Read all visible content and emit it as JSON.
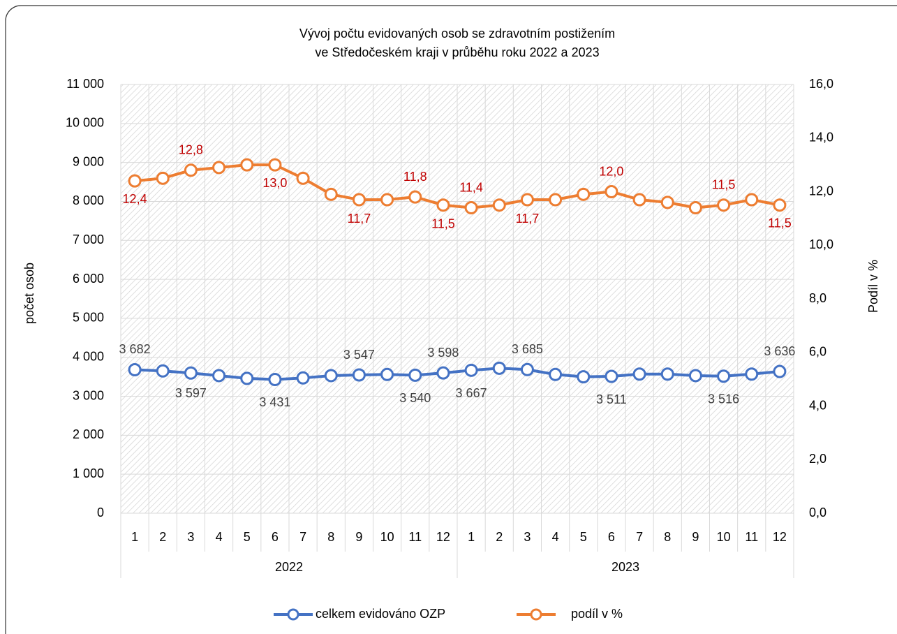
{
  "chart_data": {
    "type": "line",
    "title": [
      "Vývoj počtu evidovaných osob se zdravotním postižením",
      "ve Středočeském kraji v průběhu roku 2022 a 2023"
    ],
    "categories": [
      "1",
      "2",
      "3",
      "4",
      "5",
      "6",
      "7",
      "8",
      "9",
      "10",
      "11",
      "12",
      "1",
      "2",
      "3",
      "4",
      "5",
      "6",
      "7",
      "8",
      "9",
      "10",
      "11",
      "12"
    ],
    "category_groups": [
      "2022",
      "2023"
    ],
    "y_label": "počet osob",
    "y2_label": "Podíl v %",
    "ylim": [
      0,
      11000
    ],
    "yticks": [
      0,
      {
        "value": 1000,
        "label": "1 000"
      },
      {
        "value": 2000,
        "label": "2 000"
      },
      {
        "value": 3000,
        "label": "3 000"
      },
      {
        "value": 4000,
        "label": "4 000"
      },
      {
        "value": 5000,
        "label": "5 000"
      },
      {
        "value": 6000,
        "label": "6 000"
      },
      {
        "value": 7000,
        "label": "7 000"
      },
      {
        "value": 8000,
        "label": "8 000"
      },
      {
        "value": 9000,
        "label": "9 000"
      },
      {
        "value": 10000,
        "label": "10 000"
      },
      {
        "value": 11000,
        "label": "11 000"
      }
    ],
    "y2lim": [
      0,
      16
    ],
    "y2ticks": [
      {
        "value": 0,
        "label": "0,0"
      },
      {
        "value": 2,
        "label": "2,0"
      },
      {
        "value": 4,
        "label": "4,0"
      },
      {
        "value": 6,
        "label": "6,0"
      },
      {
        "value": 8,
        "label": "8,0"
      },
      {
        "value": 10,
        "label": "10,0"
      },
      {
        "value": 12,
        "label": "12,0"
      },
      {
        "value": 14,
        "label": "14,0"
      },
      {
        "value": 16,
        "label": "16,0"
      }
    ],
    "grid": true,
    "legend": "bottom",
    "series": [
      {
        "name": "celkem evidováno OZP",
        "color": "#4472c4",
        "label_color": "#404040",
        "values": [
          3682,
          3650,
          3597,
          3530,
          3460,
          3431,
          3470,
          3530,
          3547,
          3560,
          3540,
          3598,
          3667,
          3720,
          3685,
          3560,
          3500,
          3511,
          3570,
          3570,
          3530,
          3516,
          3570,
          3636
        ],
        "value_labels": [
          "3 682",
          null,
          "3 597",
          null,
          null,
          "3 431",
          null,
          null,
          "3 547",
          null,
          "3 540",
          "3 598",
          "3 667",
          null,
          "3 685",
          null,
          null,
          "3 511",
          null,
          null,
          null,
          "3 516",
          null,
          "3 636"
        ]
      },
      {
        "name": "podíl v %",
        "color": "#ed7d31",
        "label_color": "#c00000",
        "axis": "y2",
        "values": [
          12.4,
          12.5,
          12.8,
          12.9,
          13.0,
          13.0,
          12.5,
          11.9,
          11.7,
          11.7,
          11.8,
          11.5,
          11.4,
          11.5,
          11.7,
          11.7,
          11.9,
          12.0,
          11.7,
          11.6,
          11.4,
          11.5,
          11.7,
          11.5
        ],
        "value_labels": [
          "12,4",
          null,
          "12,8",
          null,
          null,
          "13,0",
          null,
          null,
          "11,7",
          null,
          "11,8",
          "11,5",
          "11,4",
          null,
          "11,7",
          null,
          null,
          "12,0",
          null,
          null,
          null,
          "11,5",
          null,
          "11,5"
        ]
      }
    ]
  }
}
